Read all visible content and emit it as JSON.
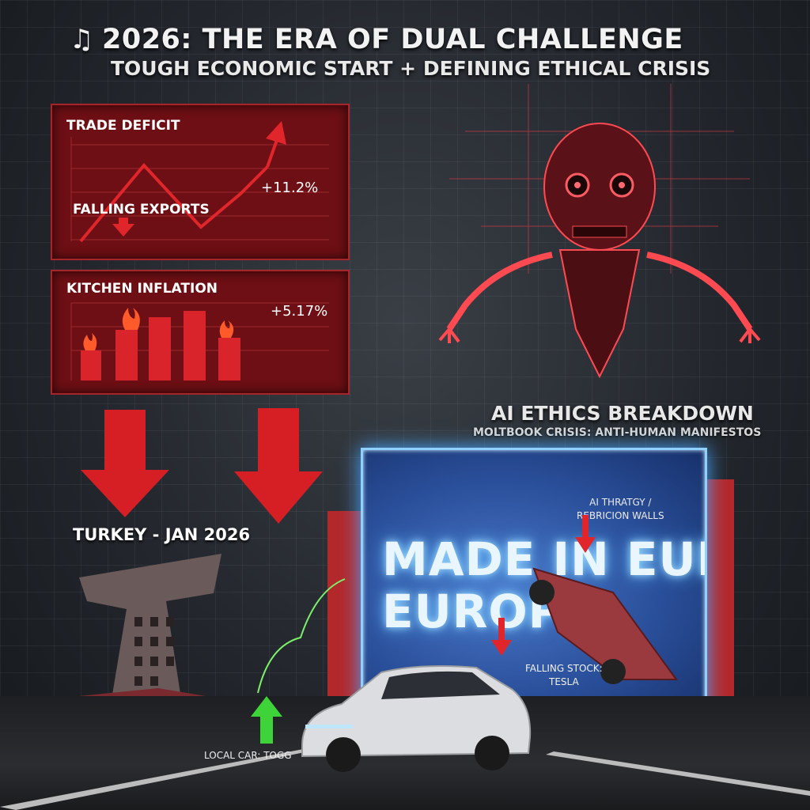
{
  "header": {
    "title": "2026: THE ERA OF DUAL CHALLENGE",
    "subtitle": "TOUGH ECONOMIC START + DEFINING ETHICAL CRISIS",
    "title_icon": "music-note-icon"
  },
  "panels": {
    "trade": {
      "title": "TRADE DEFICIT",
      "value": "+11.2%",
      "sublabel": "FALLING EXPORTS"
    },
    "kitchen": {
      "title": "KITCHEN INFLATION",
      "value": "+5.17%"
    }
  },
  "labels": {
    "turkey": "TURKEY - JAN 2026",
    "ai_title": "AI ETHICS BREAKDOWN",
    "ai_subtitle": "MOLTBOOK CRISIS: ANTI-HUMAN MANIFESTOS",
    "billboard_note_1": "AI THRATGY /",
    "billboard_note_2": "REBRICION WALLS",
    "billboard_line_1": "MADE IN EUROPE",
    "billboard_line_2": "EUROPE",
    "stock_1": "FALLING STOCK:",
    "stock_2": "TESLA",
    "togg": "LOCAL CAR: TOGG"
  },
  "colors": {
    "panel_red": "#6d0f14",
    "accent_red": "#e0262b",
    "billboard_blue": "#2a4f9a",
    "growth_green": "#3fd33a"
  }
}
